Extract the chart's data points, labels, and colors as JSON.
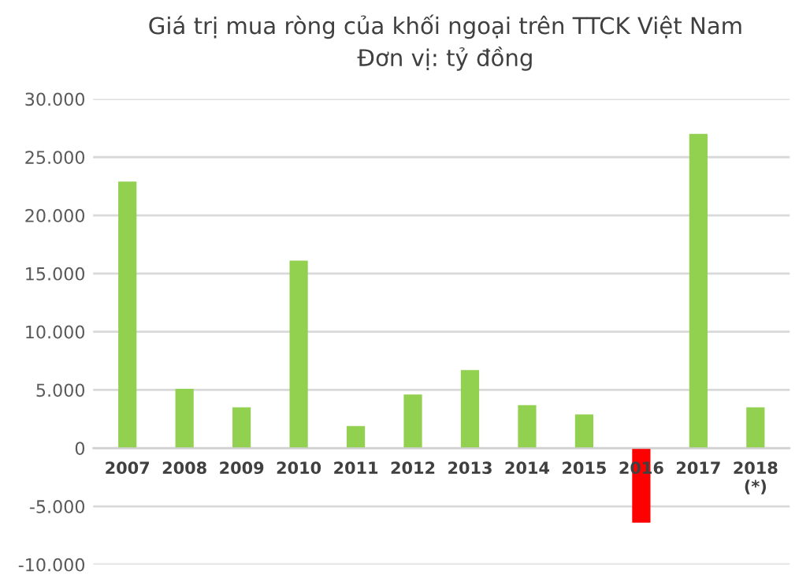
{
  "chart_data": {
    "type": "bar",
    "title": "Giá trị mua ròng của khối ngoại trên TTCK Việt Nam\nĐơn vị: tỷ đồng",
    "categories": [
      "2007",
      "2008",
      "2009",
      "2010",
      "2011",
      "2012",
      "2013",
      "2014",
      "2015",
      "2016",
      "2017",
      "2018\n(*)"
    ],
    "values": [
      22900,
      5100,
      3500,
      16100,
      1900,
      4600,
      6700,
      3700,
      2900,
      -6400,
      27000,
      3500
    ],
    "colors": [
      "#92d050",
      "#92d050",
      "#92d050",
      "#92d050",
      "#92d050",
      "#92d050",
      "#92d050",
      "#92d050",
      "#92d050",
      "#ff0000",
      "#92d050",
      "#92d050"
    ],
    "ylim": [
      -10000,
      30000
    ],
    "yticks": [
      {
        "value": -10000,
        "label": "-10.000"
      },
      {
        "value": -5000,
        "label": "-5.000"
      },
      {
        "value": 0,
        "label": "0"
      },
      {
        "value": 5000,
        "label": "5.000"
      },
      {
        "value": 10000,
        "label": "10.000"
      },
      {
        "value": 15000,
        "label": "15.000"
      },
      {
        "value": 20000,
        "label": "20.000"
      },
      {
        "value": 25000,
        "label": "25.000"
      },
      {
        "value": 30000,
        "label": "30.000"
      }
    ],
    "grid": "y",
    "legend": false
  }
}
